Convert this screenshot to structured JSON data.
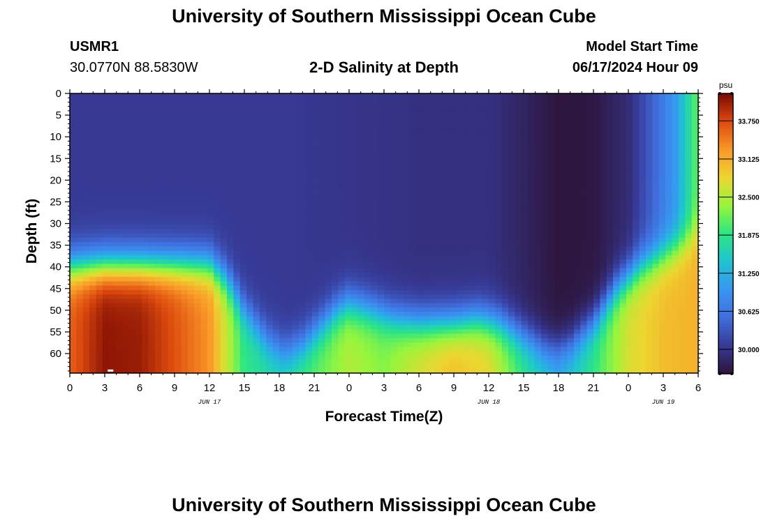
{
  "page": {
    "title": "University of Southern Mississippi Ocean Cube",
    "footer_title": "University of Southern Mississippi Ocean Cube",
    "station_id": "USMR1",
    "coordinates": "30.0770N  88.5830W",
    "plot_title": "2-D Salinity at Depth",
    "start_label": "Model Start Time",
    "start_value": "06/17/2024 Hour 09"
  },
  "chart_data": {
    "type": "heatmap",
    "title": "2-D Salinity at Depth",
    "xlabel": "Forecast Time(Z)",
    "ylabel": "Depth (ft)",
    "colorbar_unit": "psu",
    "x_range_hours": [
      0,
      54
    ],
    "x_ticks": [
      "0",
      "3",
      "6",
      "9",
      "12",
      "15",
      "18",
      "21",
      "0",
      "3",
      "6",
      "9",
      "12",
      "15",
      "18",
      "21",
      "0",
      "3",
      "6"
    ],
    "date_labels": [
      {
        "label": "JUN 17",
        "at_hour": 12
      },
      {
        "label": "JUN 18",
        "at_hour": 36
      },
      {
        "label": "JUN 19",
        "at_hour": 51
      }
    ],
    "y_range_ft": [
      0,
      64.5
    ],
    "y_ticks": [
      0,
      5,
      10,
      15,
      20,
      25,
      30,
      35,
      40,
      45,
      50,
      55,
      60
    ],
    "color_range_psu": [
      29.6,
      34.2
    ],
    "colorbar_ticks": [
      "33.750",
      "33.125",
      "32.500",
      "31.875",
      "31.250",
      "30.625",
      "30.000"
    ],
    "colorbar_tick_values": [
      33.75,
      33.125,
      32.5,
      31.875,
      31.25,
      30.625,
      30.0
    ],
    "series": [
      {
        "name": "halocline_depth_ft",
        "x": [
          0,
          3,
          6,
          9,
          12,
          13.5,
          15,
          17,
          18.5,
          20,
          21.5,
          23,
          24,
          26,
          28,
          30,
          33,
          35,
          37,
          39,
          41,
          42,
          43,
          45,
          47,
          49,
          51,
          53,
          54
        ],
        "values": [
          40,
          39.5,
          39.5,
          39.5,
          39.5,
          43,
          50,
          57,
          60,
          58,
          54,
          50,
          48.5,
          50,
          52,
          53,
          53,
          52,
          53,
          56,
          59,
          59,
          58,
          53,
          45,
          40,
          37,
          34,
          31
        ]
      },
      {
        "name": "surface_salinity_psu",
        "x": [
          0,
          6,
          12,
          18,
          24,
          30,
          36,
          39,
          42,
          45,
          48,
          50,
          52,
          53,
          54
        ],
        "values": [
          30.05,
          30.05,
          30.05,
          30.05,
          30.0,
          29.95,
          29.95,
          29.8,
          29.62,
          29.65,
          29.9,
          30.4,
          31.0,
          31.6,
          32.2
        ]
      },
      {
        "name": "bottom_salinity_psu",
        "x": [
          0,
          3,
          6,
          9,
          12,
          15,
          18,
          21,
          24,
          27,
          30,
          33,
          36,
          39,
          42,
          45,
          48,
          51,
          54
        ],
        "values": [
          33.6,
          34.1,
          34.05,
          33.7,
          33.3,
          31.9,
          31.7,
          32.1,
          32.5,
          32.3,
          32.7,
          33.0,
          32.8,
          31.9,
          31.3,
          31.9,
          32.7,
          33.0,
          33.1
        ]
      }
    ],
    "marker": {
      "x_hours": 3.5,
      "depth_ft": 64
    }
  }
}
